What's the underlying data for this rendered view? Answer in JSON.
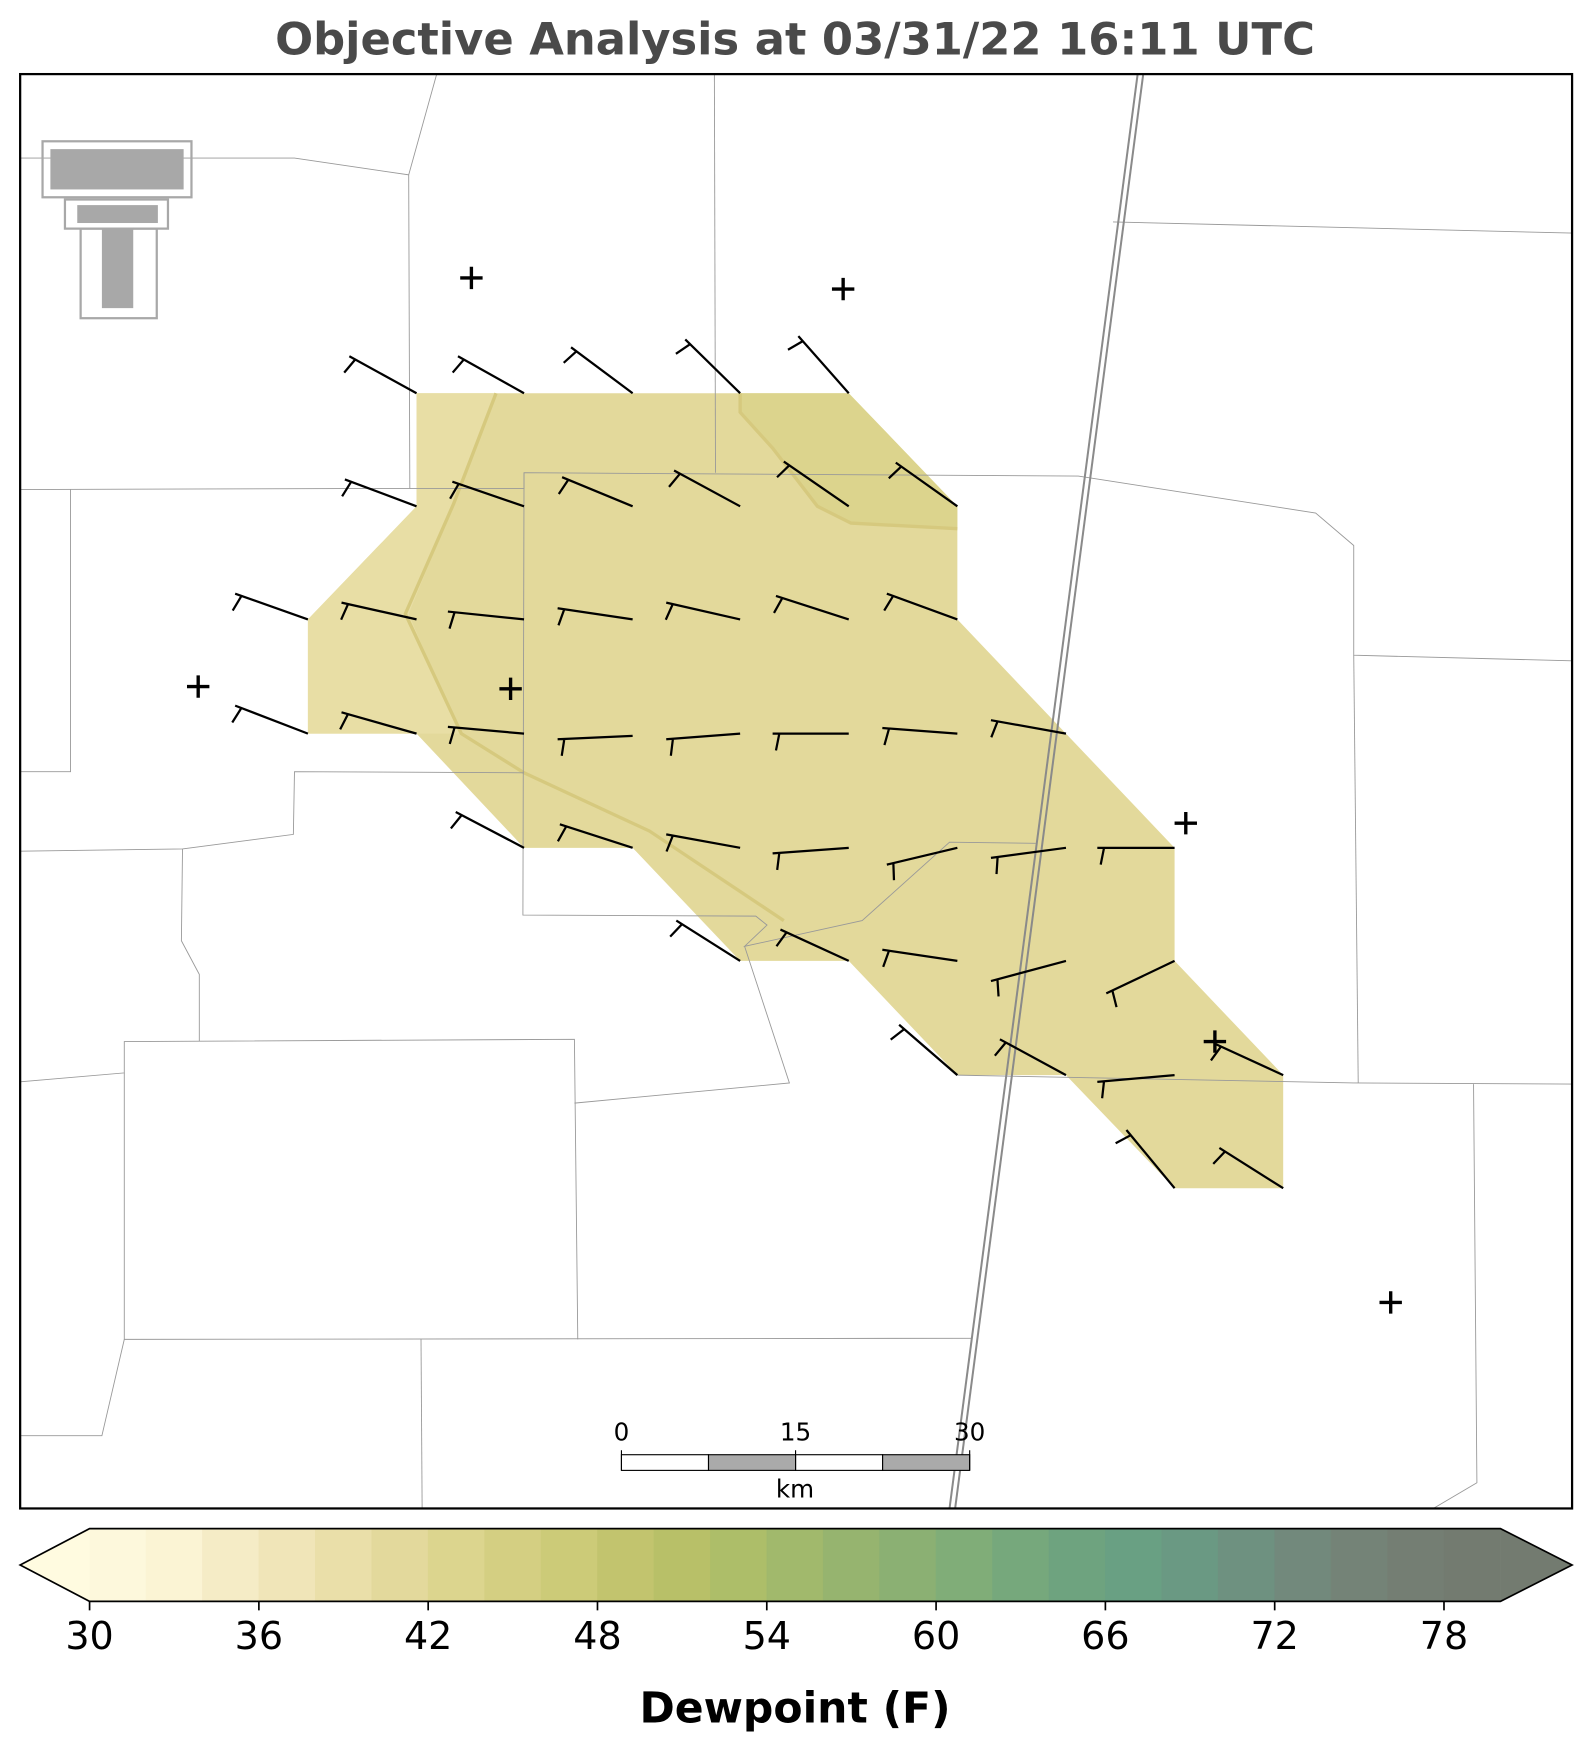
{
  "chart_data": {
    "type": "map",
    "title": "Objective Analysis at 03/31/22 16:11 UTC",
    "colorbar": {
      "label": "Dewpoint (F)",
      "lim": [
        30,
        80
      ],
      "ticks": [
        30,
        36,
        42,
        48,
        54,
        60,
        66,
        72,
        78
      ],
      "levels_step": 2,
      "colors": [
        "#fdf8dc",
        "#fbf4d4",
        "#f5ecc6",
        "#f0e5b8",
        "#eadfa9",
        "#e3d99c",
        "#dcd58e",
        "#d4cf82",
        "#cccb78",
        "#c2c46e",
        "#b8c068",
        "#adbe69",
        "#a1b96c",
        "#96b46f",
        "#8bb073",
        "#80ad78",
        "#76a87c",
        "#6ea37f",
        "#69a083",
        "#6a9983",
        "#6e9180",
        "#72897c",
        "#748377",
        "#747e73",
        "#737b70"
      ],
      "under_color": "#fffbe0",
      "over_color": "#737b70"
    },
    "scale_bar": {
      "ticks": [
        0,
        15,
        30
      ],
      "unit": "km"
    }
  }
}
